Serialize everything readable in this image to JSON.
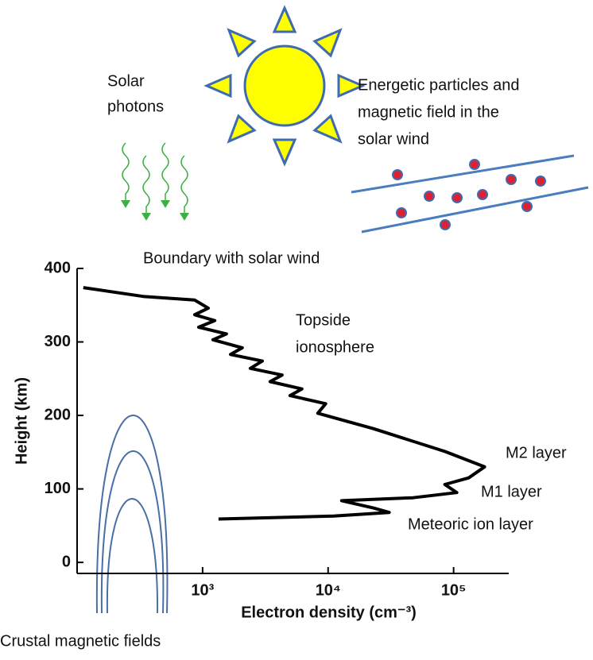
{
  "solar_photons": [
    "Solar",
    "photons"
  ],
  "solar_wind": [
    "Energetic particles and",
    "magnetic  field in the",
    "solar wind"
  ],
  "crustal_label": "Crustal magnetic fields",
  "chart_data": {
    "type": "line",
    "xlabel": "Electron density (cm⁻³)",
    "ylabel": "Height (km)",
    "log_x": true,
    "color": "#000000",
    "xlim": [
      100,
      275000
    ],
    "ylim": [
      -15,
      400
    ],
    "xticks": [
      {
        "value": 1000,
        "label": "10³"
      },
      {
        "value": 10000,
        "label": "10⁴"
      },
      {
        "value": 100000,
        "label": "10⁵"
      }
    ],
    "yticks": [
      0,
      100,
      200,
      300,
      400
    ],
    "x": [
      112,
      335,
      865,
      1110,
      865,
      1250,
      930,
      1550,
      1210,
      2070,
      1670,
      2990,
      2400,
      4300,
      3450,
      6180,
      4970,
      9570,
      8280,
      22960,
      85110,
      176600,
      131800,
      85110,
      105900,
      47530,
      12820,
      22960,
      30690,
      11070,
      1340
    ],
    "values": [
      374,
      362,
      357,
      346,
      337,
      329,
      320,
      311,
      303,
      292,
      283,
      274,
      264,
      255,
      246,
      236,
      227,
      216,
      203,
      182,
      151,
      130,
      115,
      106,
      95,
      88,
      84,
      74,
      68,
      63,
      59
    ],
    "annotations": [
      "Boundary with solar wind",
      "Topside",
      "ionosphere",
      "M2 layer",
      "M1 layer",
      "Meteoric ion layer"
    ]
  }
}
